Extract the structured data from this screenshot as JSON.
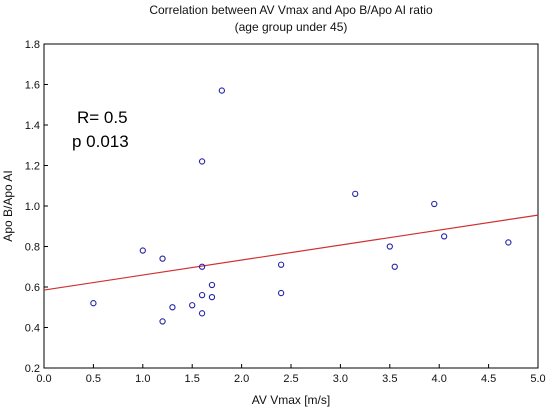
{
  "chart_data": {
    "type": "scatter",
    "title": "Correlation between AV Vmax and Apo B/Apo AI ratio",
    "subtitle": "(age group under 45)",
    "xlabel": "AV Vmax [m/s]",
    "ylabel": "Apo B/Apo AI",
    "xlim": [
      0.0,
      5.0
    ],
    "ylim": [
      0.2,
      1.8
    ],
    "x_ticks": [
      "0.0",
      "0.5",
      "1.0",
      "1.5",
      "2.0",
      "2.5",
      "3.0",
      "3.5",
      "4.0",
      "4.5",
      "5.0"
    ],
    "y_ticks": [
      "0.2",
      "0.4",
      "0.6",
      "0.8",
      "1.0",
      "1.2",
      "1.4",
      "1.6",
      "1.8"
    ],
    "grid": false,
    "points": [
      {
        "x": 0.5,
        "y": 0.52
      },
      {
        "x": 1.0,
        "y": 0.78
      },
      {
        "x": 1.2,
        "y": 0.74
      },
      {
        "x": 1.2,
        "y": 0.43
      },
      {
        "x": 1.3,
        "y": 0.5
      },
      {
        "x": 1.5,
        "y": 0.51
      },
      {
        "x": 1.6,
        "y": 0.7
      },
      {
        "x": 1.6,
        "y": 0.56
      },
      {
        "x": 1.6,
        "y": 0.47
      },
      {
        "x": 1.6,
        "y": 1.22
      },
      {
        "x": 1.7,
        "y": 0.61
      },
      {
        "x": 1.7,
        "y": 0.55
      },
      {
        "x": 1.8,
        "y": 1.57
      },
      {
        "x": 2.4,
        "y": 0.71
      },
      {
        "x": 2.4,
        "y": 0.57
      },
      {
        "x": 3.15,
        "y": 1.06
      },
      {
        "x": 3.5,
        "y": 0.8
      },
      {
        "x": 3.55,
        "y": 0.7
      },
      {
        "x": 3.95,
        "y": 1.01
      },
      {
        "x": 4.05,
        "y": 0.85
      },
      {
        "x": 4.7,
        "y": 0.82
      }
    ],
    "fit_line": {
      "x": [
        0.0,
        5.0
      ],
      "y": [
        0.585,
        0.955
      ]
    },
    "annotations": [
      "R= 0.5",
      "p 0.013"
    ],
    "colors": {
      "points": "#2222aa",
      "fit_line": "#d03030",
      "axes": "#000000"
    }
  }
}
